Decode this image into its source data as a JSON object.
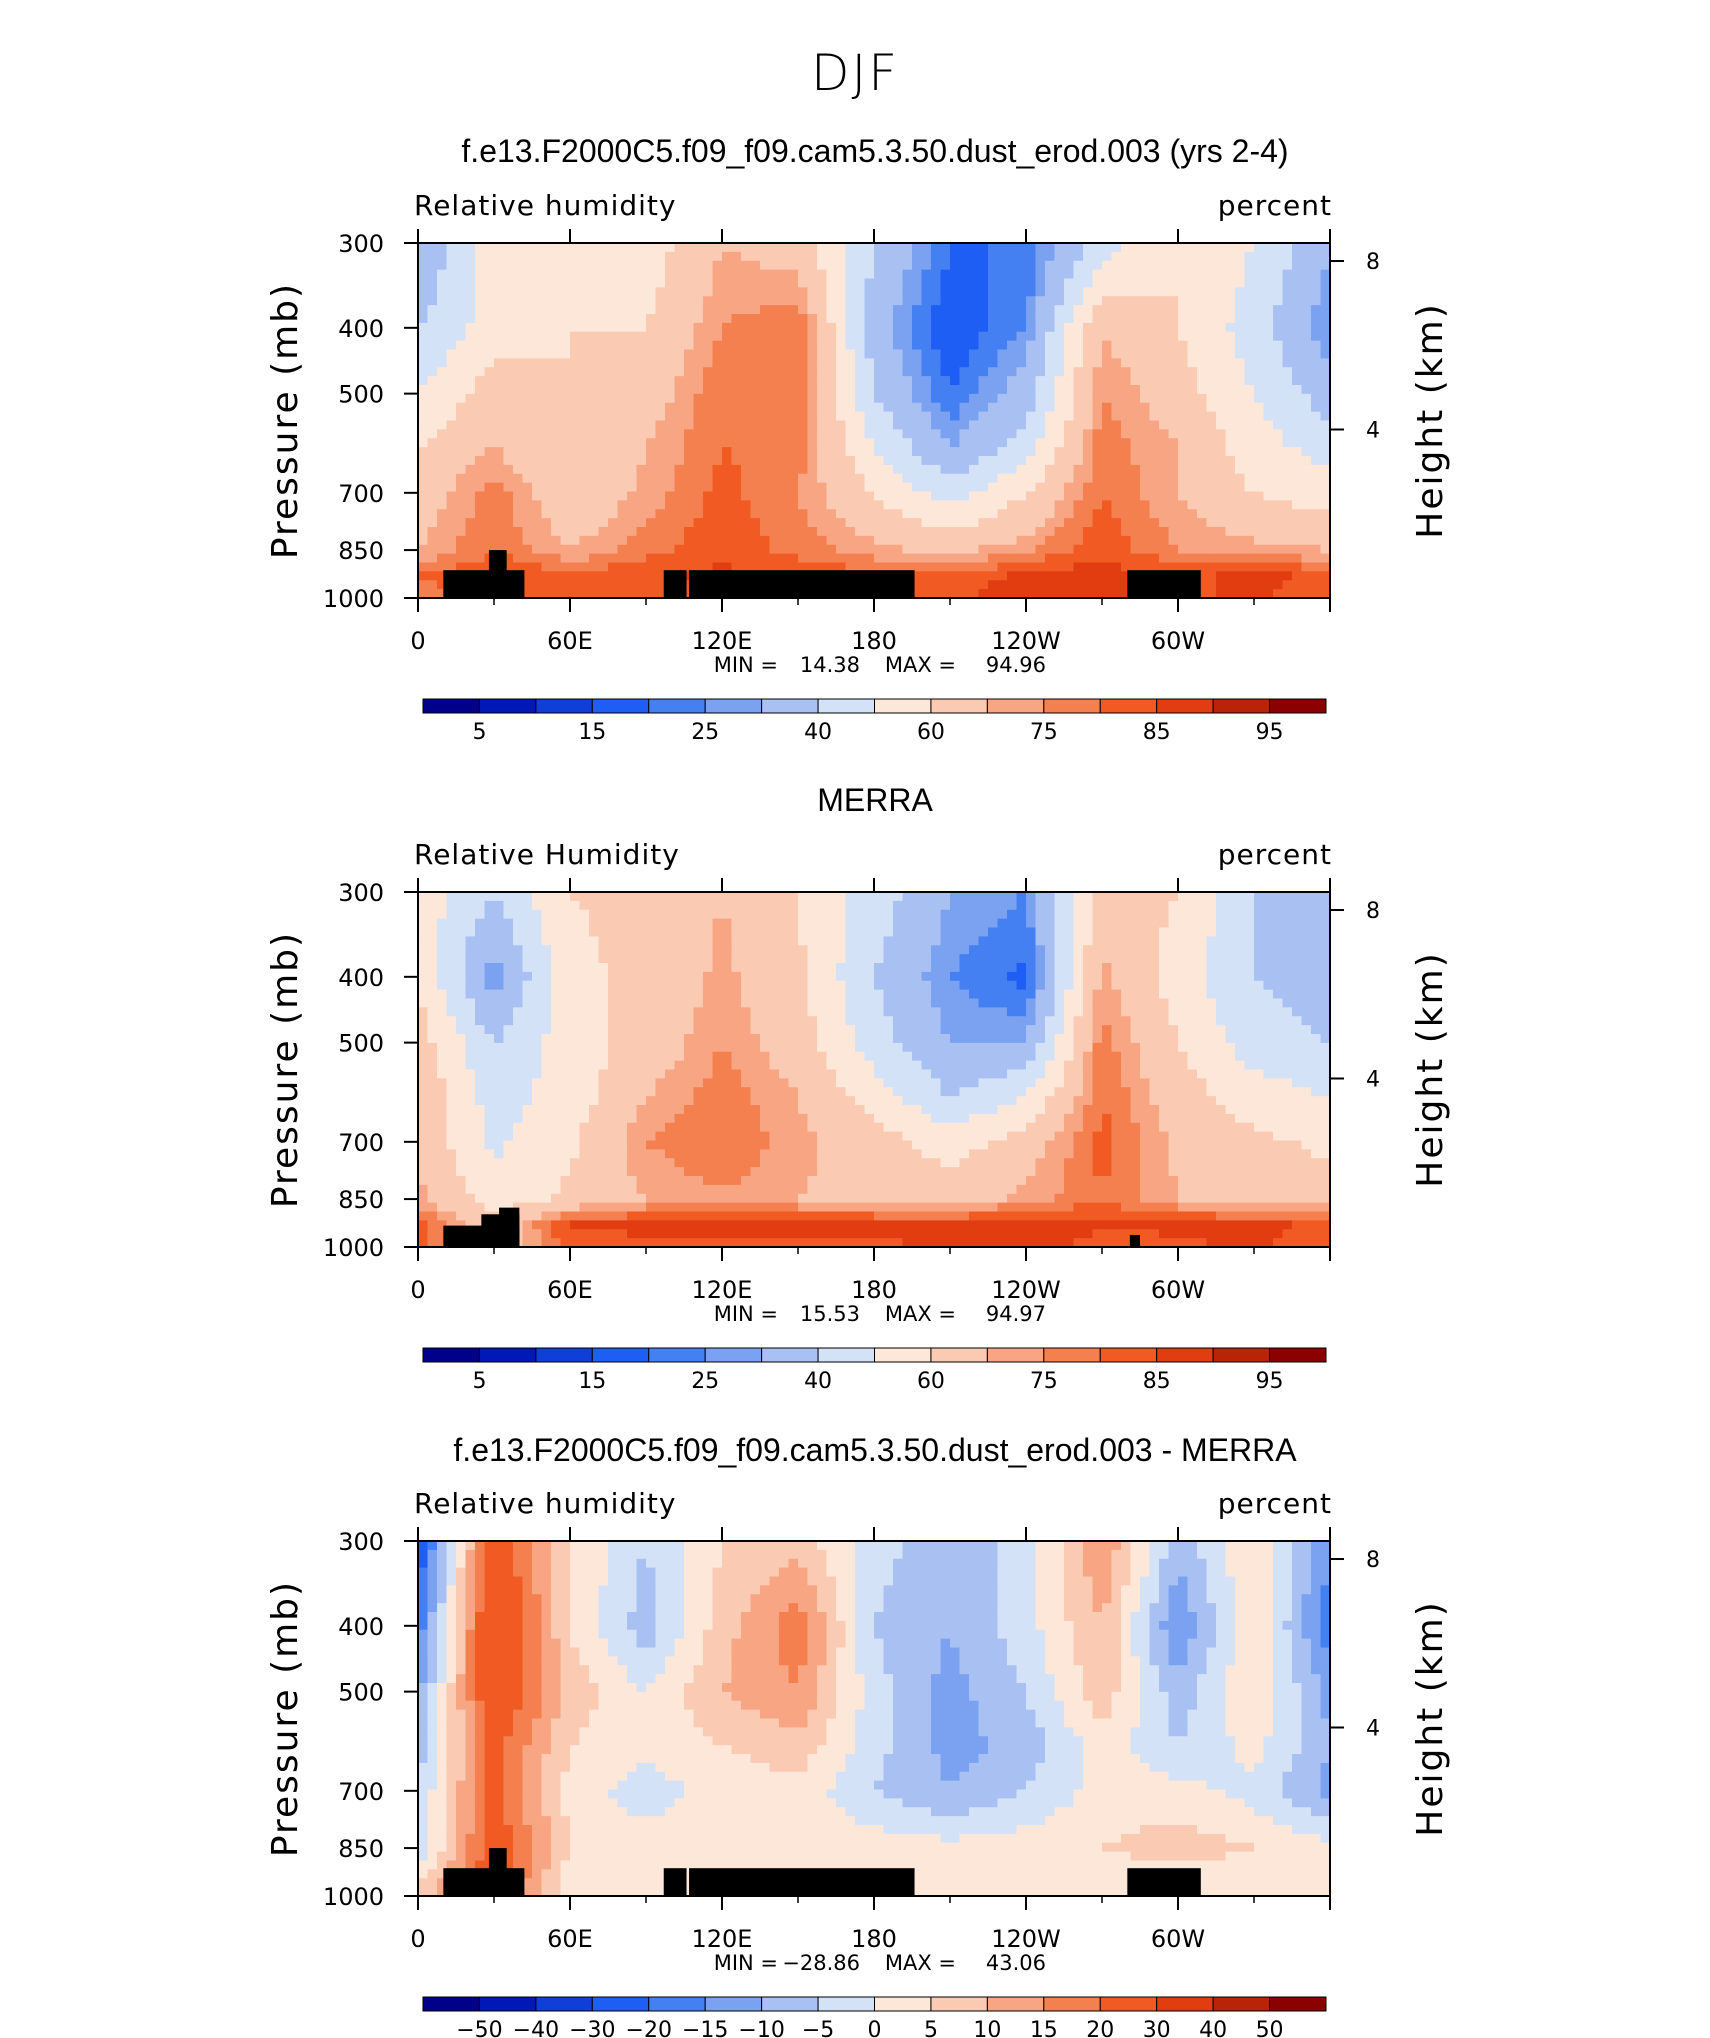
{
  "title": "DJF",
  "colors": {
    "rh_levels": [
      "#00008b",
      "#0018b8",
      "#0f3fd8",
      "#1e5ef5",
      "#4580f2",
      "#7aa2f0",
      "#a9c1f2",
      "#d4e2f8",
      "#fde7d8",
      "#fbcab2",
      "#f7a583",
      "#f5804f",
      "#f15a22",
      "#e13d11",
      "#b92308",
      "#8b0000"
    ],
    "diff_levels": [
      "#00008b",
      "#0018b8",
      "#0f3fd8",
      "#1e5ef5",
      "#4580f2",
      "#7aa2f0",
      "#a9c1f2",
      "#d4e2f8",
      "#fde7d8",
      "#fbcab2",
      "#f7a583",
      "#f5804f",
      "#f15a22",
      "#e13d11",
      "#b92308",
      "#8b0000"
    ]
  },
  "axes": {
    "xticks": [
      "0",
      "60E",
      "120E",
      "180",
      "120W",
      "60W"
    ],
    "left_ticks": [
      "300",
      "400",
      "500",
      "700",
      "850",
      "1000"
    ],
    "right_ticks": [
      "8",
      "4"
    ],
    "ylabel_left": "Pressure (mb)",
    "ylabel_right": "Height (km)"
  },
  "chart_data": [
    {
      "type": "heatmap",
      "title": "f.e13.F2000C5.f09_f09.cam5.3.50.dust_erod.003 (yrs 2-4)",
      "variable": "Relative humidity",
      "units": "percent",
      "min_label": "MIN =",
      "max_label": "MAX =",
      "min": "14.38",
      "max": "94.96",
      "colorbar_labels": [
        "5",
        "15",
        "25",
        "40",
        "60",
        "75",
        "85",
        "95"
      ],
      "x": [
        0,
        30,
        60,
        90,
        120,
        150,
        180,
        210,
        240,
        270,
        300,
        330,
        360
      ],
      "pressure": [
        300,
        400,
        500,
        600,
        700,
        850,
        925,
        1000
      ],
      "z": [
        [
          30,
          55,
          60,
          55,
          70,
          65,
          40,
          20,
          20,
          45,
          60,
          50,
          30
        ],
        [
          40,
          55,
          60,
          60,
          75,
          80,
          35,
          15,
          25,
          70,
          60,
          45,
          25
        ],
        [
          50,
          65,
          60,
          65,
          80,
          80,
          40,
          20,
          35,
          75,
          65,
          50,
          35
        ],
        [
          60,
          70,
          60,
          70,
          80,
          78,
          50,
          30,
          45,
          78,
          70,
          55,
          45
        ],
        [
          65,
          78,
          62,
          72,
          82,
          75,
          60,
          45,
          60,
          80,
          70,
          60,
          55
        ],
        [
          70,
          80,
          70,
          78,
          84,
          78,
          72,
          68,
          74,
          84,
          75,
          72,
          70
        ],
        [
          80,
          85,
          82,
          84,
          86,
          84,
          82,
          82,
          86,
          88,
          84,
          86,
          84
        ],
        [
          78,
          80,
          84,
          84,
          84,
          84,
          82,
          84,
          88,
          86,
          84,
          86,
          82
        ]
      ]
    },
    {
      "type": "heatmap",
      "title": "MERRA",
      "variable": "Relative Humidity",
      "units": "percent",
      "min_label": "MIN =",
      "max_label": "MAX =",
      "min": "15.53",
      "max": "94.97",
      "colorbar_labels": [
        "5",
        "15",
        "25",
        "40",
        "60",
        "75",
        "85",
        "95"
      ],
      "x": [
        0,
        30,
        60,
        90,
        120,
        150,
        180,
        210,
        240,
        270,
        300,
        330,
        360
      ],
      "pressure": [
        300,
        400,
        500,
        600,
        700,
        850,
        925,
        1000
      ],
      "z": [
        [
          55,
          40,
          60,
          62,
          70,
          60,
          45,
          30,
          25,
          65,
          60,
          40,
          30
        ],
        [
          60,
          25,
          58,
          62,
          72,
          62,
          40,
          25,
          18,
          72,
          55,
          40,
          35
        ],
        [
          65,
          40,
          55,
          64,
          75,
          65,
          45,
          30,
          30,
          78,
          60,
          45,
          40
        ],
        [
          70,
          45,
          55,
          70,
          78,
          70,
          55,
          40,
          50,
          80,
          65,
          55,
          50
        ],
        [
          68,
          48,
          58,
          75,
          80,
          72,
          65,
          55,
          65,
          82,
          68,
          62,
          58
        ],
        [
          72,
          55,
          62,
          70,
          74,
          70,
          68,
          66,
          72,
          80,
          70,
          66,
          64
        ],
        [
          84,
          62,
          86,
          86,
          86,
          86,
          86,
          86,
          88,
          86,
          86,
          86,
          84
        ],
        [
          82,
          60,
          82,
          84,
          84,
          84,
          84,
          86,
          88,
          82,
          84,
          86,
          82
        ]
      ]
    },
    {
      "type": "heatmap",
      "title": "f.e13.F2000C5.f09_f09.cam5.3.50.dust_erod.003 - MERRA",
      "variable": "Relative humidity",
      "units": "percent",
      "min_label": "MIN =",
      "max_label": "MAX =",
      "min": "−28.86",
      "max": "43.06",
      "colorbar_labels": [
        "−50",
        "−40",
        "−30",
        "−20",
        "−15",
        "−10",
        "−5",
        "0",
        "5",
        "10",
        "15",
        "20",
        "30",
        "40",
        "50"
      ],
      "x": [
        0,
        30,
        60,
        90,
        120,
        150,
        180,
        210,
        240,
        270,
        300,
        330,
        360
      ],
      "pressure": [
        300,
        400,
        500,
        600,
        700,
        850,
        925,
        1000
      ],
      "z": [
        [
          -25,
          25,
          5,
          -5,
          5,
          8,
          -3,
          -8,
          -3,
          15,
          -8,
          5,
          -15
        ],
        [
          -18,
          30,
          5,
          -8,
          8,
          18,
          -5,
          -10,
          -2,
          10,
          -15,
          5,
          -18
        ],
        [
          -12,
          28,
          8,
          0,
          10,
          15,
          -3,
          -12,
          -5,
          8,
          -8,
          5,
          -12
        ],
        [
          -8,
          22,
          5,
          2,
          5,
          8,
          -3,
          -12,
          -8,
          3,
          -5,
          2,
          -10
        ],
        [
          -5,
          22,
          3,
          -3,
          2,
          3,
          -5,
          -10,
          -5,
          2,
          2,
          -2,
          -12
        ],
        [
          -5,
          25,
          5,
          3,
          5,
          3,
          3,
          2,
          3,
          5,
          8,
          5,
          2
        ],
        [
          3,
          25,
          3,
          2,
          2,
          2,
          2,
          3,
          3,
          2,
          3,
          2,
          2
        ],
        [
          5,
          22,
          2,
          3,
          2,
          3,
          2,
          2,
          3,
          2,
          2,
          3,
          2
        ]
      ]
    }
  ]
}
